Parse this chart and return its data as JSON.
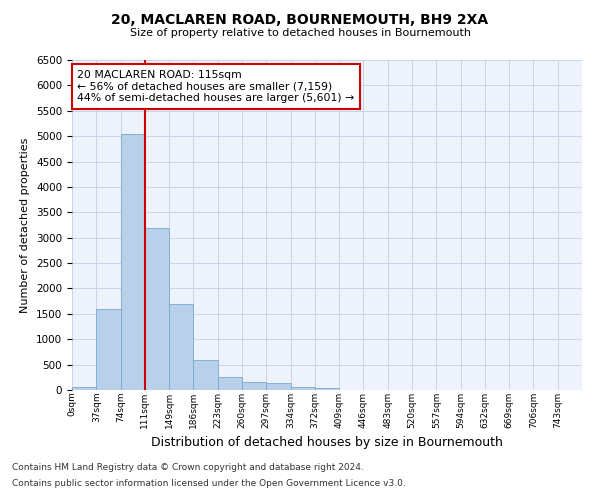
{
  "title": "20, MACLAREN ROAD, BOURNEMOUTH, BH9 2XA",
  "subtitle": "Size of property relative to detached houses in Bournemouth",
  "xlabel": "Distribution of detached houses by size in Bournemouth",
  "ylabel": "Number of detached properties",
  "footnote1": "Contains HM Land Registry data © Crown copyright and database right 2024.",
  "footnote2": "Contains public sector information licensed under the Open Government Licence v3.0.",
  "bar_labels": [
    "0sqm",
    "37sqm",
    "74sqm",
    "111sqm",
    "149sqm",
    "186sqm",
    "223sqm",
    "260sqm",
    "297sqm",
    "334sqm",
    "372sqm",
    "409sqm",
    "446sqm",
    "483sqm",
    "520sqm",
    "557sqm",
    "594sqm",
    "632sqm",
    "669sqm",
    "706sqm",
    "743sqm"
  ],
  "bar_values": [
    50,
    1600,
    5050,
    3200,
    1700,
    600,
    260,
    160,
    130,
    60,
    30,
    0,
    0,
    0,
    0,
    0,
    0,
    0,
    0,
    0
  ],
  "bar_color": "#b8d0ea",
  "bar_edge_color": "#7aaacf",
  "vline_color": "#cc0000",
  "ylim": [
    0,
    6500
  ],
  "yticks": [
    0,
    500,
    1000,
    1500,
    2000,
    2500,
    3000,
    3500,
    4000,
    4500,
    5000,
    5500,
    6000,
    6500
  ],
  "annotation_text": "20 MACLAREN ROAD: 115sqm\n← 56% of detached houses are smaller (7,159)\n44% of semi-detached houses are larger (5,601) →",
  "annotation_box_facecolor": "white",
  "annotation_box_edgecolor": "#cc0000",
  "grid_color": "#c8d4e8",
  "bg_color": "#eef2fa"
}
